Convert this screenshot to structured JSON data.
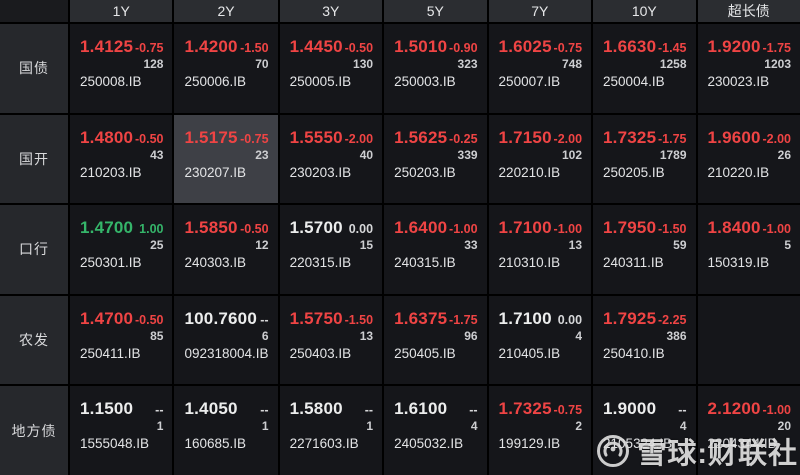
{
  "table": {
    "corner_label": "",
    "columns": [
      "1Y",
      "2Y",
      "3Y",
      "5Y",
      "7Y",
      "10Y",
      "超长债"
    ],
    "rows": [
      {
        "label": "国债",
        "cells": [
          {
            "rate": "1.4125",
            "chg": "-0.75",
            "vol": "128",
            "code": "250008.IB",
            "tone": "red"
          },
          {
            "rate": "1.4200",
            "chg": "-1.50",
            "vol": "70",
            "code": "250006.IB",
            "tone": "red"
          },
          {
            "rate": "1.4450",
            "chg": "-0.50",
            "vol": "130",
            "code": "250005.IB",
            "tone": "red"
          },
          {
            "rate": "1.5010",
            "chg": "-0.90",
            "vol": "323",
            "code": "250003.IB",
            "tone": "red"
          },
          {
            "rate": "1.6025",
            "chg": "-0.75",
            "vol": "748",
            "code": "250007.IB",
            "tone": "red"
          },
          {
            "rate": "1.6630",
            "chg": "-1.45",
            "vol": "1258",
            "code": "250004.IB",
            "tone": "red"
          },
          {
            "rate": "1.9200",
            "chg": "-1.75",
            "vol": "1203",
            "code": "230023.IB",
            "tone": "red"
          }
        ]
      },
      {
        "label": "国开",
        "cells": [
          {
            "rate": "1.4800",
            "chg": "-0.50",
            "vol": "43",
            "code": "210203.IB",
            "tone": "red"
          },
          {
            "rate": "1.5175",
            "chg": "-0.75",
            "vol": "23",
            "code": "230207.IB",
            "tone": "red",
            "highlight": true
          },
          {
            "rate": "1.5550",
            "chg": "-2.00",
            "vol": "40",
            "code": "230203.IB",
            "tone": "red"
          },
          {
            "rate": "1.5625",
            "chg": "-0.25",
            "vol": "339",
            "code": "250203.IB",
            "tone": "red"
          },
          {
            "rate": "1.7150",
            "chg": "-2.00",
            "vol": "102",
            "code": "220210.IB",
            "tone": "red"
          },
          {
            "rate": "1.7325",
            "chg": "-1.75",
            "vol": "1789",
            "code": "250205.IB",
            "tone": "red"
          },
          {
            "rate": "1.9600",
            "chg": "-2.00",
            "vol": "26",
            "code": "210220.IB",
            "tone": "red"
          }
        ]
      },
      {
        "label": "口行",
        "cells": [
          {
            "rate": "1.4700",
            "chg": "1.00",
            "vol": "25",
            "code": "250301.IB",
            "tone": "green"
          },
          {
            "rate": "1.5850",
            "chg": "-0.50",
            "vol": "12",
            "code": "240303.IB",
            "tone": "red"
          },
          {
            "rate": "1.5700",
            "chg": "0.00",
            "vol": "15",
            "code": "220315.IB",
            "tone": "white"
          },
          {
            "rate": "1.6400",
            "chg": "-1.00",
            "vol": "33",
            "code": "240315.IB",
            "tone": "red"
          },
          {
            "rate": "1.7100",
            "chg": "-1.00",
            "vol": "13",
            "code": "210310.IB",
            "tone": "red"
          },
          {
            "rate": "1.7950",
            "chg": "-1.50",
            "vol": "59",
            "code": "240311.IB",
            "tone": "red"
          },
          {
            "rate": "1.8400",
            "chg": "-1.00",
            "vol": "5",
            "code": "150319.IB",
            "tone": "red"
          }
        ]
      },
      {
        "label": "农发",
        "cells": [
          {
            "rate": "1.4700",
            "chg": "-0.50",
            "vol": "85",
            "code": "250411.IB",
            "tone": "red"
          },
          {
            "rate": "100.7600",
            "chg": "--",
            "vol": "6",
            "code": "092318004.IB",
            "tone": "white"
          },
          {
            "rate": "1.5750",
            "chg": "-1.50",
            "vol": "13",
            "code": "250403.IB",
            "tone": "red"
          },
          {
            "rate": "1.6375",
            "chg": "-1.75",
            "vol": "96",
            "code": "250405.IB",
            "tone": "red"
          },
          {
            "rate": "1.7100",
            "chg": "0.00",
            "vol": "4",
            "code": "210405.IB",
            "tone": "white"
          },
          {
            "rate": "1.7925",
            "chg": "-2.25",
            "vol": "386",
            "code": "250410.IB",
            "tone": "red"
          },
          null
        ]
      },
      {
        "label": "地方债",
        "cells": [
          {
            "rate": "1.1500",
            "chg": "--",
            "vol": "1",
            "code": "1555048.IB",
            "tone": "white"
          },
          {
            "rate": "1.4050",
            "chg": "--",
            "vol": "1",
            "code": "160685.IB",
            "tone": "white"
          },
          {
            "rate": "1.5800",
            "chg": "--",
            "vol": "1",
            "code": "2271603.IB",
            "tone": "white"
          },
          {
            "rate": "1.6100",
            "chg": "--",
            "vol": "4",
            "code": "2405032.IB",
            "tone": "white"
          },
          {
            "rate": "1.7325",
            "chg": "-0.75",
            "vol": "2",
            "code": "199129.IB",
            "tone": "red"
          },
          {
            "rate": "1.9000",
            "chg": "--",
            "vol": "4",
            "code": "2105324.IB",
            "tone": "white"
          },
          {
            "rate": "2.1200",
            "chg": "-1.00",
            "vol": "20",
            "code": "2204344.IB",
            "tone": "red"
          }
        ]
      }
    ]
  },
  "watermark": {
    "text": "雪球:财联社"
  },
  "colors": {
    "up_red": "#ef4444",
    "down_green": "#35b56a",
    "flat_white": "#eceded",
    "highlight_bg": "#3e4046"
  }
}
